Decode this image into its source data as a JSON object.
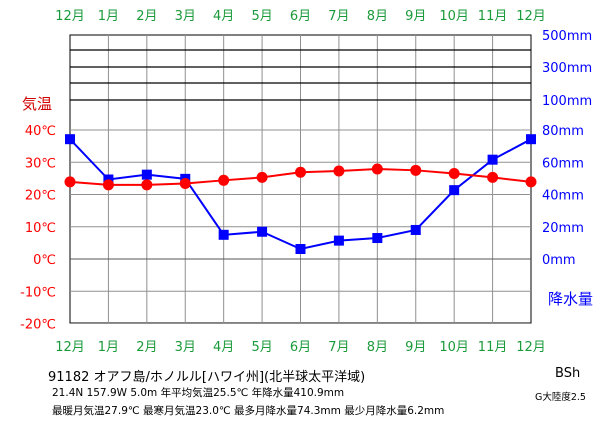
{
  "chart_data": {
    "type": "line",
    "categories": [
      "12月",
      "1月",
      "2月",
      "3月",
      "4月",
      "5月",
      "6月",
      "7月",
      "8月",
      "9月",
      "10月",
      "11月",
      "12月"
    ],
    "month_label_color": "#1a9a3a",
    "temperature": {
      "axis_title": "気温",
      "color": "#ff0000",
      "ticks": [
        "40℃",
        "30℃",
        "20℃",
        "10℃",
        "0℃",
        "-10℃",
        "-20℃"
      ],
      "tick_values": [
        40,
        30,
        20,
        10,
        0,
        -10,
        -20
      ],
      "ylim": [
        -20,
        40
      ],
      "values": [
        23.9,
        23.0,
        23.0,
        23.4,
        24.4,
        25.3,
        26.9,
        27.3,
        27.9,
        27.5,
        26.5,
        25.3,
        23.9
      ]
    },
    "precipitation": {
      "axis_title": "降水量",
      "color": "#0000ff",
      "ticks": [
        "500mm",
        "300mm",
        "100mm",
        "80mm",
        "60mm",
        "40mm",
        "20mm",
        "0mm"
      ],
      "tick_values": [
        500,
        300,
        100,
        80,
        60,
        40,
        20,
        0
      ],
      "values": [
        74.3,
        49.3,
        52.3,
        49.7,
        15.0,
        16.9,
        6.2,
        11.4,
        13.0,
        18.0,
        42.7,
        61.6,
        74.3
      ]
    },
    "grid": true
  },
  "info": {
    "title": "91182  オアフ島/ホノルル[ハワイ州](北半球太平洋域)",
    "line1": "21.4N  157.9W  5.0m  年平均気温25.5℃  年降水量410.9mm",
    "line2": "最暖月気温27.9℃ 最寒月気温23.0℃ 最多月降水量74.3mm 最少月降水量6.2mm",
    "climate_class": "BSh",
    "continentality": "G大陸度2.5"
  }
}
